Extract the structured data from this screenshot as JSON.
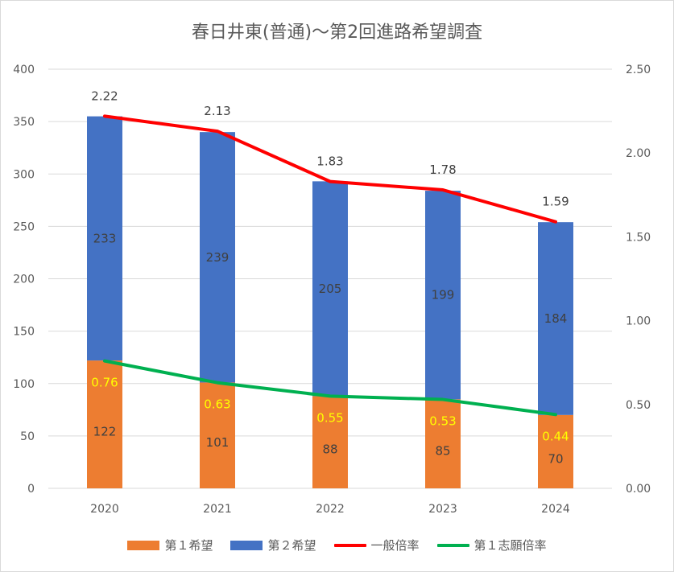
{
  "chart_data": {
    "type": "bar",
    "stacked": true,
    "title": "春日井東(普通)～第2回進路希望調査",
    "categories": [
      "2020",
      "2021",
      "2022",
      "2023",
      "2024"
    ],
    "series": [
      {
        "name": "第１希望",
        "kind": "bar",
        "axis": "left",
        "color": "#ed7d31",
        "values": [
          122,
          101,
          88,
          85,
          70
        ],
        "labels": [
          "122",
          "101",
          "88",
          "85",
          "70"
        ]
      },
      {
        "name": "第２希望",
        "kind": "bar",
        "axis": "left",
        "color": "#4472c4",
        "values": [
          233,
          239,
          205,
          199,
          184
        ],
        "labels": [
          "233",
          "239",
          "205",
          "199",
          "184"
        ]
      },
      {
        "name": "一般倍率",
        "kind": "line",
        "axis": "right",
        "color": "#ff0000",
        "values": [
          2.22,
          2.13,
          1.83,
          1.78,
          1.59
        ],
        "labels": [
          "2.22",
          "2.13",
          "1.83",
          "1.78",
          "1.59"
        ]
      },
      {
        "name": "第１志願倍率",
        "kind": "line",
        "axis": "right",
        "color": "#00b050",
        "values": [
          0.76,
          0.63,
          0.55,
          0.53,
          0.44
        ],
        "labels": [
          "0.76",
          "0.63",
          "0.55",
          "0.53",
          "0.44"
        ]
      }
    ],
    "ylim_left": [
      0,
      400
    ],
    "yticks_left": [
      "0",
      "50",
      "100",
      "150",
      "200",
      "250",
      "300",
      "350",
      "400"
    ],
    "ylim_right": [
      0,
      2.5
    ],
    "yticks_right": [
      "0.00",
      "0.50",
      "1.00",
      "1.50",
      "2.00",
      "2.50"
    ],
    "grid": true,
    "legend": "bottom"
  }
}
